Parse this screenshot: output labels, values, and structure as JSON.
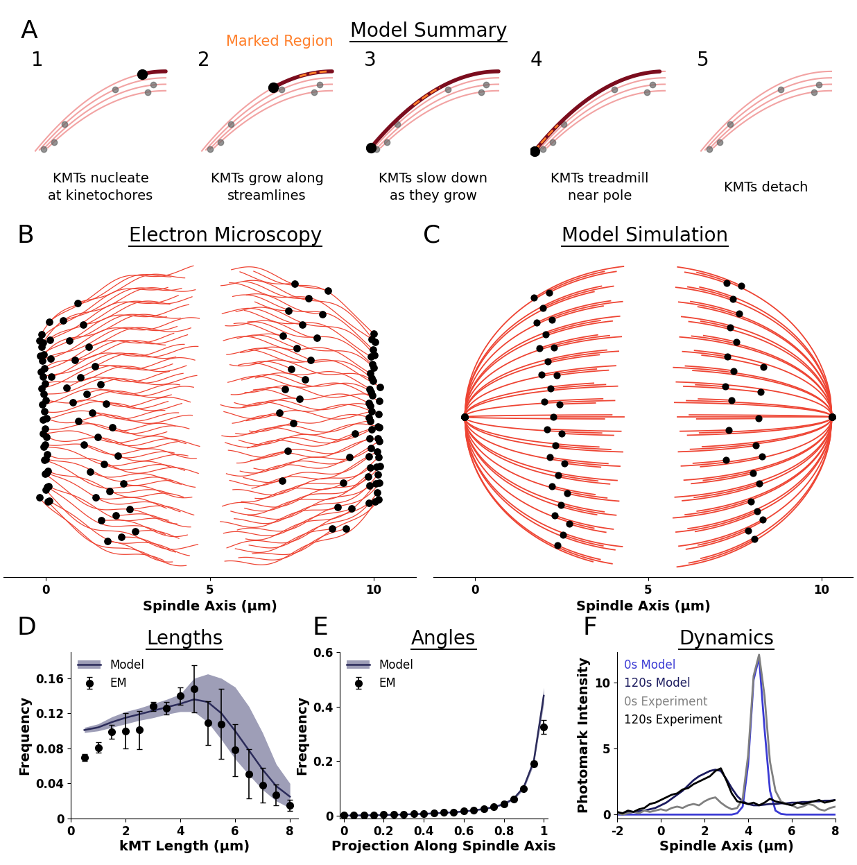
{
  "panel_labels": [
    "A",
    "B",
    "C",
    "D",
    "E",
    "F"
  ],
  "model_summary": {
    "title": "Model Summary",
    "marked_region_label": "Marked Region",
    "steps": [
      {
        "number": 1,
        "caption": "KMTs nucleate\nat kinetochores"
      },
      {
        "number": 2,
        "caption": "KMTs grow along\nstreamlines"
      },
      {
        "number": 3,
        "caption": "KMTs slow down\nas they grow"
      },
      {
        "number": 4,
        "caption": "KMTs treadmill\nnear pole"
      },
      {
        "number": 5,
        "caption": "KMTs detach"
      }
    ]
  },
  "chart_data": [
    {
      "type": "diagram",
      "title": "Electron Microscopy",
      "x_label": "Spindle Axis (µm)",
      "xlim": [
        -1.3,
        11.3
      ],
      "xticks": [
        0,
        5,
        10
      ]
    },
    {
      "type": "diagram",
      "title": "Model Simulation",
      "x_label": "Spindle Axis (µm)",
      "xlim": [
        -1.2,
        10.9
      ],
      "xticks": [
        0,
        5,
        10
      ]
    },
    {
      "type": "line",
      "title": "Lengths",
      "x_label": "kMT Length (µm)",
      "y_label": "Frequency",
      "xlim": [
        0,
        8.3
      ],
      "ylim": [
        0,
        0.19
      ],
      "xticks": [
        0,
        2,
        4,
        6,
        8
      ],
      "yticks": [
        0,
        0.04,
        0.08,
        0.12,
        0.16
      ],
      "legend": "upper left",
      "x": [
        0.5,
        1.0,
        1.5,
        2.0,
        2.5,
        3.0,
        3.5,
        4.0,
        4.5,
        5.0,
        5.5,
        6.0,
        6.5,
        7.0,
        7.5,
        8.0
      ],
      "series": [
        {
          "name": "Model",
          "type": "line",
          "color": "#2b2b5a",
          "values": [
            0.101,
            0.104,
            0.11,
            0.115,
            0.119,
            0.123,
            0.127,
            0.131,
            0.136,
            0.133,
            0.12,
            0.1,
            0.078,
            0.056,
            0.037,
            0.025
          ],
          "band_low": [
            0.098,
            0.1,
            0.104,
            0.108,
            0.112,
            0.115,
            0.119,
            0.122,
            0.122,
            0.11,
            0.09,
            0.068,
            0.05,
            0.033,
            0.02,
            0.012
          ],
          "band_high": [
            0.104,
            0.108,
            0.116,
            0.122,
            0.126,
            0.131,
            0.136,
            0.142,
            0.16,
            0.165,
            0.16,
            0.15,
            0.128,
            0.098,
            0.062,
            0.04
          ]
        },
        {
          "name": "EM",
          "type": "scatter",
          "color": "#000000",
          "marker": "o",
          "values": [
            0.07,
            0.081,
            0.099,
            0.1,
            0.101,
            0.128,
            0.126,
            0.14,
            0.148,
            0.109,
            0.108,
            0.078,
            0.051,
            0.038,
            0.027,
            0.015
          ],
          "errors": [
            0.004,
            0.006,
            0.008,
            0.02,
            0.022,
            0.005,
            0.007,
            0.01,
            0.027,
            0.025,
            0.04,
            0.03,
            0.028,
            0.02,
            0.012,
            0.006
          ]
        }
      ]
    },
    {
      "type": "line",
      "title": "Angles",
      "x_label": "Projection Along Spindle Axis",
      "y_label": "Frequency",
      "xlim": [
        -0.02,
        1.02
      ],
      "ylim": [
        -0.01,
        0.6
      ],
      "xticks": [
        0,
        0.2,
        0.4,
        0.6,
        0.8,
        1
      ],
      "yticks": [
        0,
        0.2,
        0.4,
        0.6
      ],
      "legend": "upper left",
      "x": [
        0,
        0.05,
        0.1,
        0.15,
        0.2,
        0.25,
        0.3,
        0.35,
        0.4,
        0.45,
        0.5,
        0.55,
        0.6,
        0.65,
        0.7,
        0.75,
        0.8,
        0.85,
        0.9,
        0.95,
        1.0
      ],
      "series": [
        {
          "name": "Model",
          "type": "line",
          "color": "#2b2b5a",
          "values": [
            0.001,
            0.001,
            0.002,
            0.002,
            0.003,
            0.004,
            0.005,
            0.006,
            0.007,
            0.009,
            0.011,
            0.013,
            0.016,
            0.02,
            0.025,
            0.032,
            0.043,
            0.063,
            0.105,
            0.2,
            0.44
          ],
          "band_low": [
            0.001,
            0.001,
            0.001,
            0.002,
            0.002,
            0.003,
            0.004,
            0.005,
            0.006,
            0.008,
            0.01,
            0.012,
            0.014,
            0.018,
            0.023,
            0.029,
            0.039,
            0.058,
            0.097,
            0.188,
            0.41
          ],
          "band_high": [
            0.002,
            0.002,
            0.003,
            0.003,
            0.004,
            0.005,
            0.006,
            0.007,
            0.008,
            0.01,
            0.012,
            0.014,
            0.018,
            0.022,
            0.027,
            0.035,
            0.047,
            0.068,
            0.113,
            0.212,
            0.47
          ]
        },
        {
          "name": "EM",
          "type": "scatter",
          "color": "#000000",
          "marker": "o",
          "values": [
            0.002,
            0.002,
            0.003,
            0.003,
            0.004,
            0.005,
            0.006,
            0.007,
            0.008,
            0.01,
            0.012,
            0.014,
            0.017,
            0.021,
            0.026,
            0.033,
            0.043,
            0.062,
            0.1,
            0.19,
            0.325
          ],
          "errors": [
            0.001,
            0.001,
            0.001,
            0.001,
            0.001,
            0.001,
            0.001,
            0.001,
            0.001,
            0.001,
            0.001,
            0.001,
            0.001,
            0.002,
            0.002,
            0.002,
            0.003,
            0.004,
            0.006,
            0.01,
            0.025
          ]
        }
      ]
    },
    {
      "type": "line",
      "title": "Dynamics",
      "x_label": "Spindle Axis (µm)",
      "y_label": "Photomark Intensity",
      "xlim": [
        -2,
        8
      ],
      "ylim": [
        -0.3,
        12.3
      ],
      "xticks": [
        -2,
        0,
        2,
        4,
        6,
        8
      ],
      "yticks": [
        0,
        5,
        10
      ],
      "legend": "upper left",
      "x": [
        -2,
        -1.75,
        -1.5,
        -1.25,
        -1,
        -0.75,
        -0.5,
        -0.25,
        0,
        0.25,
        0.5,
        0.75,
        1,
        1.25,
        1.5,
        1.75,
        2,
        2.25,
        2.5,
        2.75,
        3,
        3.25,
        3.5,
        3.75,
        4,
        4.25,
        4.5,
        4.75,
        5,
        5.25,
        5.5,
        5.75,
        6,
        6.25,
        6.5,
        6.75,
        7,
        7.25,
        7.5,
        7.75,
        8
      ],
      "series": [
        {
          "name": "0s Model",
          "type": "line",
          "color": "#3b3bd4",
          "values": [
            0,
            0,
            0,
            0,
            0,
            0,
            0,
            0,
            0,
            0,
            0,
            0,
            0,
            0,
            0,
            0,
            0,
            0,
            0,
            0,
            0,
            0,
            0.1,
            0.6,
            3.8,
            10.2,
            11.9,
            6.5,
            1.8,
            0.3,
            0.05,
            0,
            0,
            0,
            0,
            0,
            0,
            0,
            0,
            0,
            0
          ]
        },
        {
          "name": "120s Model",
          "type": "line",
          "color": "#1b1b5e",
          "values": [
            0.1,
            0.1,
            0.15,
            0.2,
            0.25,
            0.3,
            0.4,
            0.5,
            0.7,
            0.9,
            1.2,
            1.5,
            1.8,
            2.2,
            2.6,
            2.9,
            3.1,
            3.3,
            3.4,
            3.3,
            2.7,
            2.0,
            1.4,
            1.0,
            0.8,
            0.7,
            0.7,
            0.75,
            0.8,
            0.8,
            0.85,
            0.85,
            0.9,
            0.9,
            0.95,
            0.95,
            1.0,
            1.0,
            1.05,
            1.05,
            1.1
          ]
        },
        {
          "name": "0s Experiment",
          "type": "line",
          "color": "#808080",
          "values": [
            0.1,
            0.0,
            0.1,
            0.2,
            0.1,
            0.3,
            0.2,
            0.3,
            0.4,
            0.3,
            0.5,
            0.6,
            0.5,
            0.7,
            0.8,
            0.7,
            1.0,
            1.2,
            1.3,
            0.9,
            0.6,
            0.4,
            0.5,
            1.2,
            4.5,
            10.5,
            12.1,
            9.0,
            4.0,
            1.8,
            1.0,
            0.8,
            0.7,
            0.5,
            0.6,
            0.8,
            0.7,
            0.4,
            0.3,
            0.5,
            0.6
          ]
        },
        {
          "name": "120s Experiment",
          "type": "line",
          "color": "#000000",
          "values": [
            0.2,
            0.1,
            0.3,
            0.2,
            0.4,
            0.5,
            0.8,
            0.9,
            1.1,
            1.3,
            1.5,
            1.6,
            1.9,
            2.0,
            2.3,
            2.5,
            2.7,
            2.9,
            3.3,
            3.5,
            2.6,
            1.6,
            1.0,
            0.9,
            0.8,
            0.9,
            0.7,
            0.9,
            1.2,
            1.0,
            0.9,
            0.8,
            0.7,
            0.9,
            0.8,
            0.9,
            1.0,
            1.1,
            0.9,
            1.0,
            1.1
          ]
        }
      ]
    }
  ]
}
